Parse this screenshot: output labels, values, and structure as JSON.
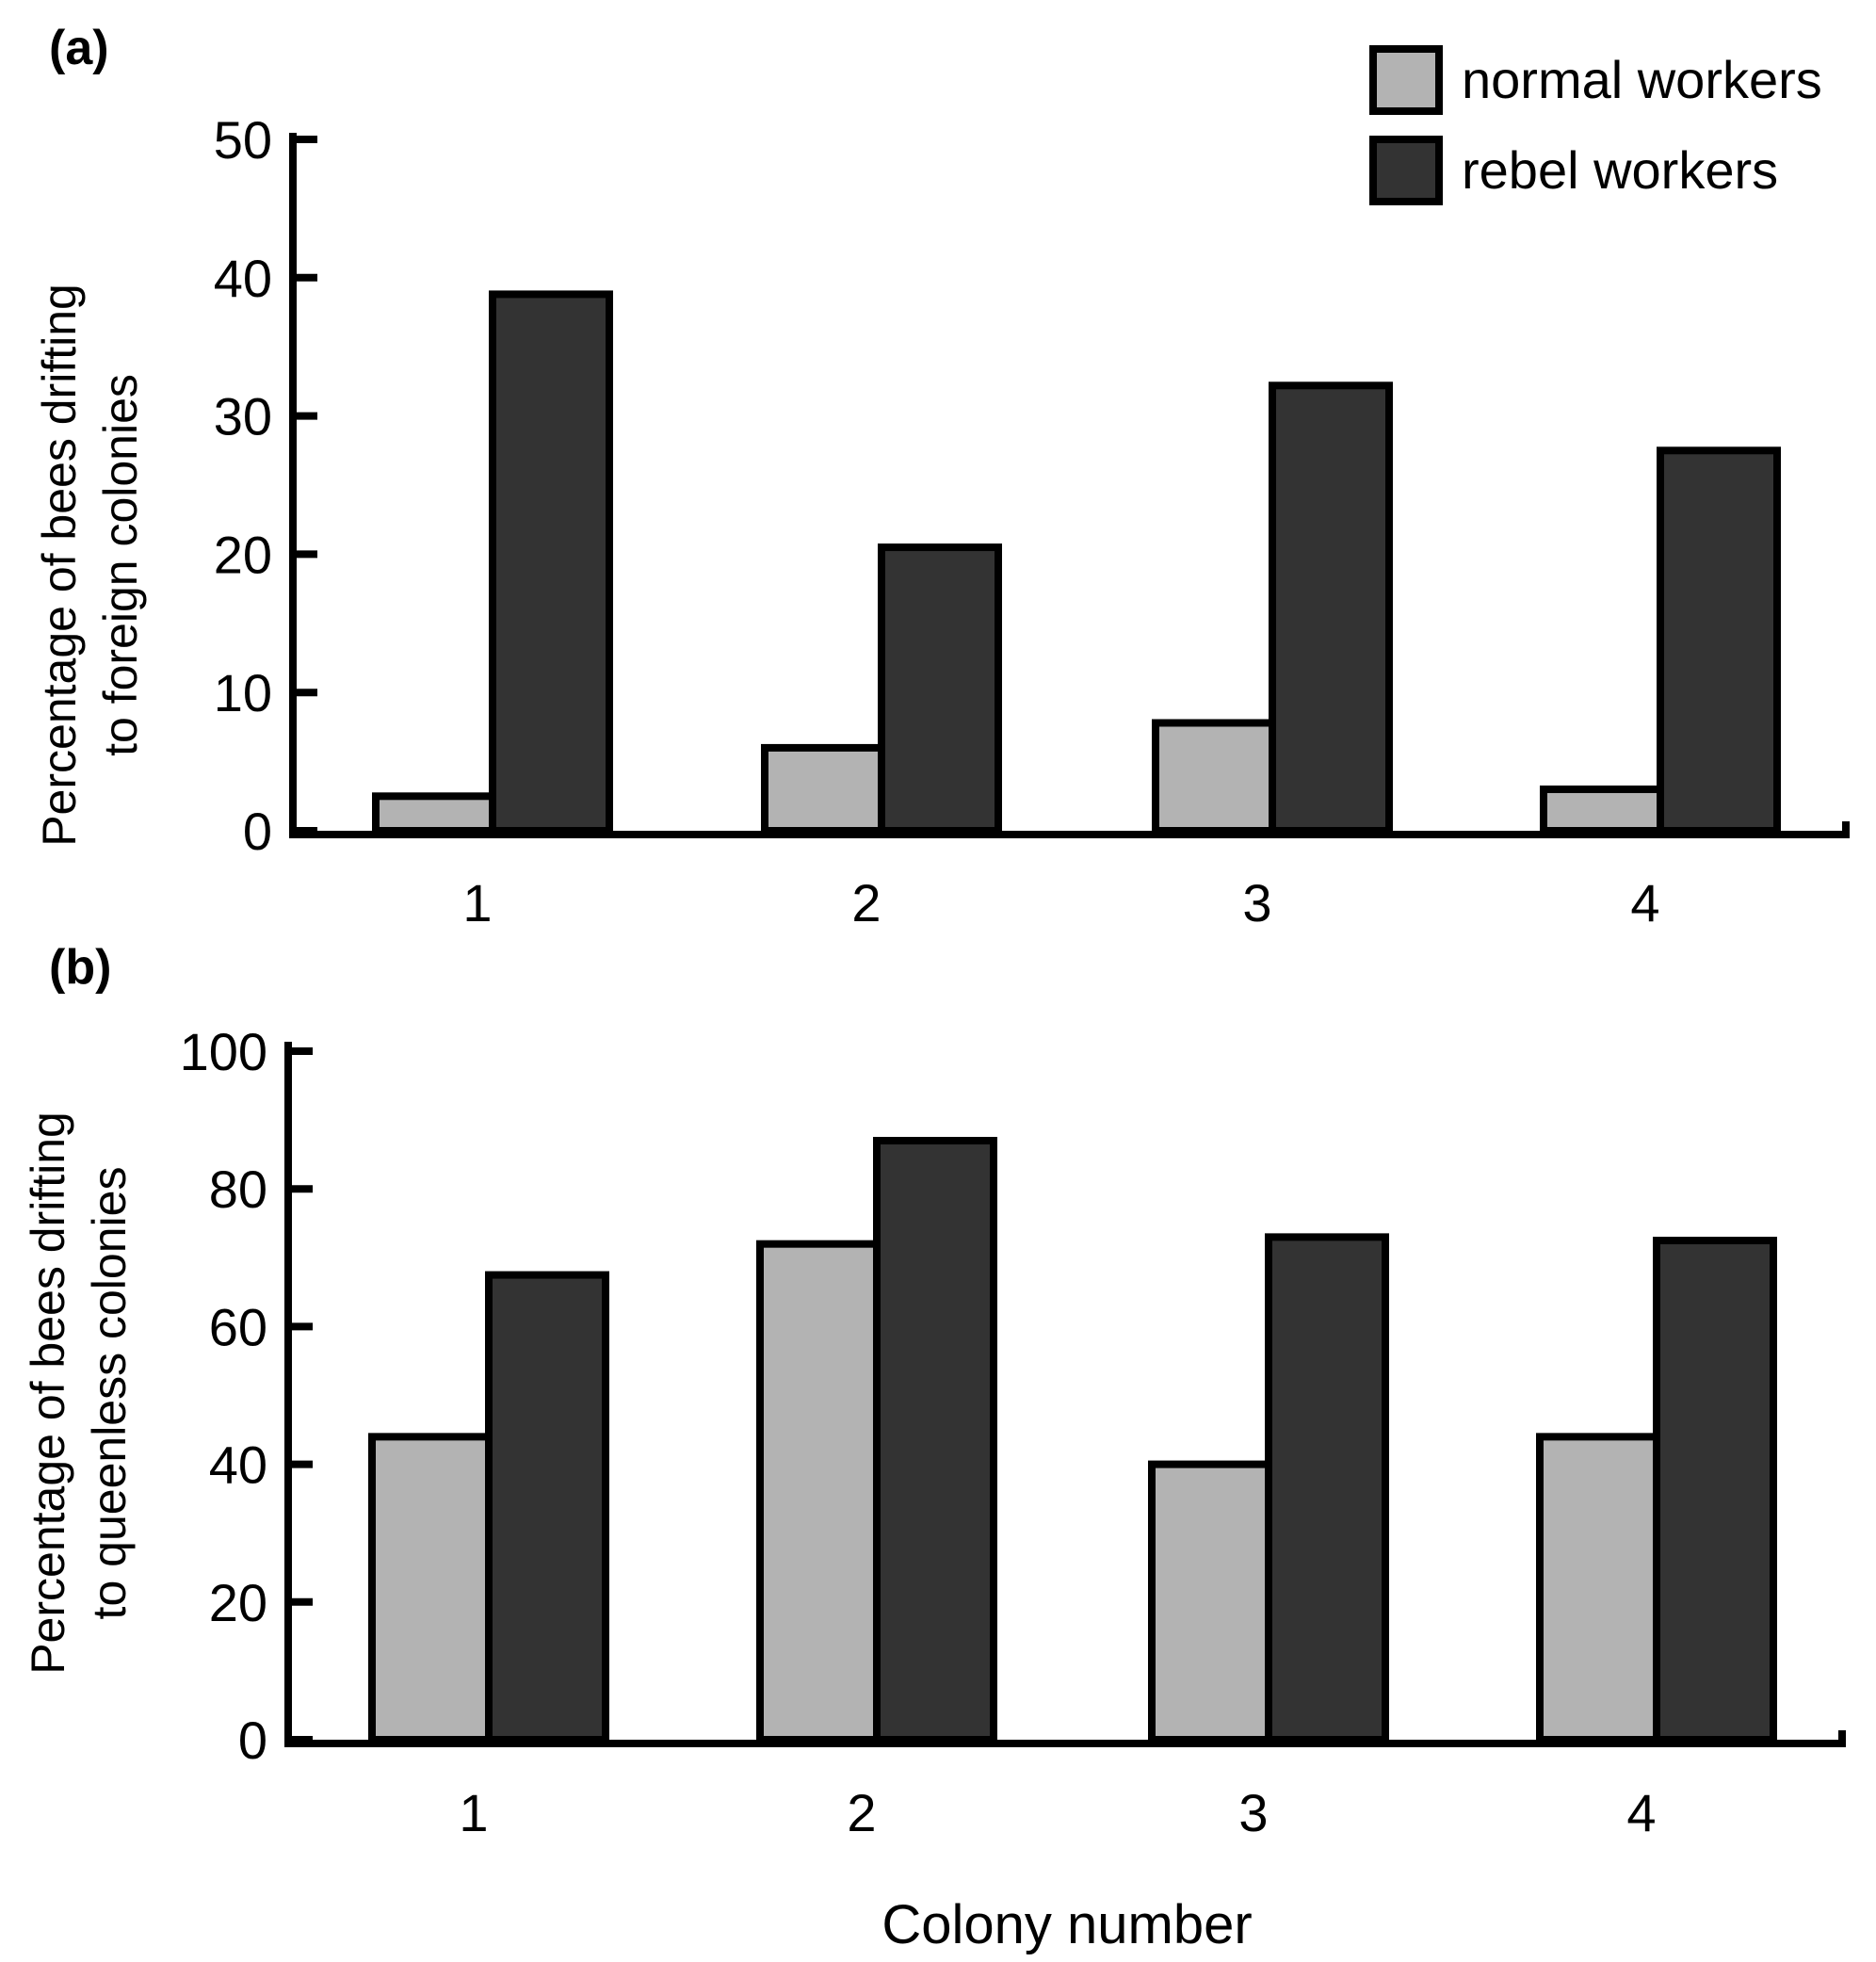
{
  "chart_data": [
    {
      "type": "bar",
      "panel_label": "(a)",
      "categories": [
        "1",
        "2",
        "3",
        "4"
      ],
      "series": [
        {
          "name": "normal workers",
          "values": [
            2.5,
            6,
            7.8,
            3
          ]
        },
        {
          "name": "rebel workers",
          "values": [
            38.8,
            20.5,
            32.2,
            27.5
          ]
        }
      ],
      "ylabel_lines": [
        "Percentage of bees drifting",
        "to foreign colonies"
      ],
      "ylim": [
        0,
        50
      ],
      "yticks": [
        0,
        10,
        20,
        30,
        40,
        50
      ],
      "legend_placement": "top-right",
      "grid": false
    },
    {
      "type": "bar",
      "panel_label": "(b)",
      "categories": [
        "1",
        "2",
        "3",
        "4"
      ],
      "series": [
        {
          "name": "normal workers",
          "values": [
            44,
            72,
            40,
            44
          ]
        },
        {
          "name": "rebel workers",
          "values": [
            67.5,
            87,
            73,
            72.5
          ]
        }
      ],
      "ylabel_lines": [
        "Percentage of bees drifting",
        "to queenless colonies"
      ],
      "ylim": [
        0,
        100
      ],
      "yticks": [
        0,
        20,
        40,
        60,
        80,
        100
      ],
      "xlabel": "Colony number",
      "grid": false
    }
  ],
  "legend": {
    "items": [
      {
        "label": "normal workers",
        "color": "#b3b3b3"
      },
      {
        "label": "rebel workers",
        "color": "#333333"
      }
    ]
  },
  "colors": {
    "normal": "#b3b3b3",
    "rebel": "#333333",
    "stroke": "#000000"
  }
}
